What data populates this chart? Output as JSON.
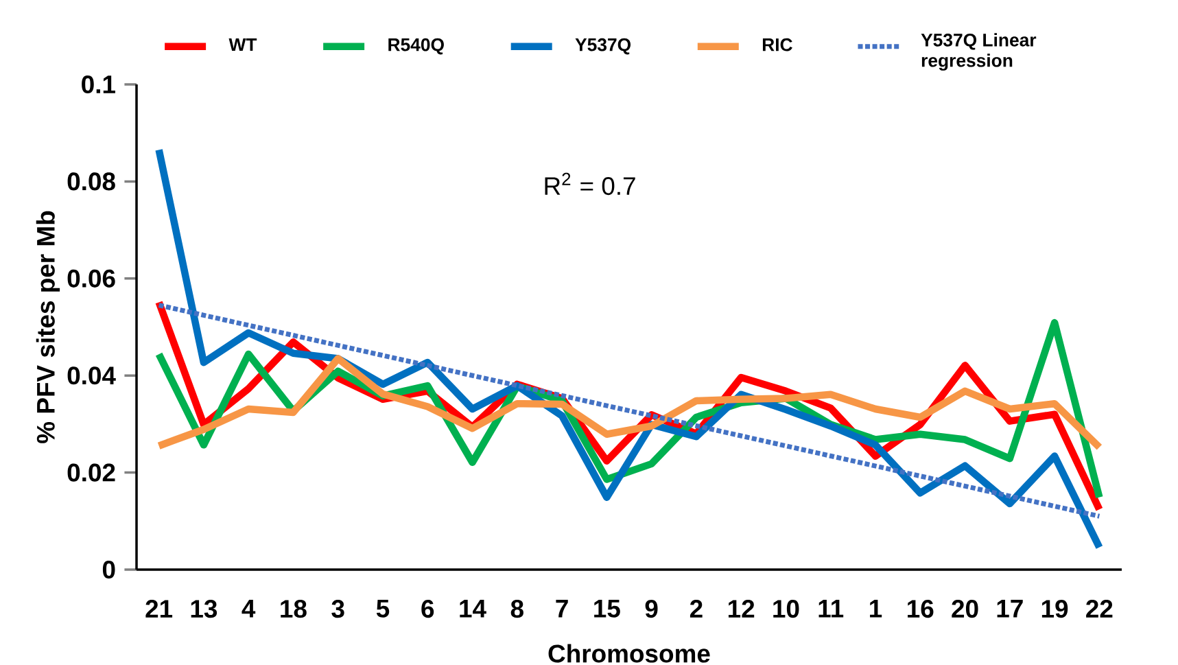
{
  "chart_data": {
    "type": "line",
    "xlabel": "Chromosome",
    "ylabel": "% PFV sites per Mb",
    "categories": [
      "21",
      "13",
      "4",
      "18",
      "3",
      "5",
      "6",
      "14",
      "8",
      "7",
      "15",
      "9",
      "2",
      "12",
      "10",
      "11",
      "1",
      "16",
      "20",
      "17",
      "19",
      "22"
    ],
    "series": [
      {
        "name": "WT",
        "color": "#ff0000",
        "values": [
          0.0551,
          0.0299,
          0.0373,
          0.0469,
          0.0395,
          0.0351,
          0.0368,
          0.0294,
          0.0382,
          0.0353,
          0.0224,
          0.0319,
          0.028,
          0.0396,
          0.0368,
          0.0333,
          0.0234,
          0.0299,
          0.0421,
          0.0306,
          0.032,
          0.0124
        ]
      },
      {
        "name": "R540Q",
        "color": "#00b050",
        "values": [
          0.0444,
          0.0257,
          0.0444,
          0.0327,
          0.0409,
          0.0358,
          0.0379,
          0.0221,
          0.0378,
          0.0348,
          0.0186,
          0.0218,
          0.0314,
          0.0344,
          0.0353,
          0.0299,
          0.0268,
          0.0279,
          0.0268,
          0.0229,
          0.0509,
          0.0149
        ]
      },
      {
        "name": "Y537Q",
        "color": "#0070c0",
        "values": [
          0.0865,
          0.0427,
          0.0488,
          0.0446,
          0.0435,
          0.0382,
          0.0427,
          0.0331,
          0.0379,
          0.0317,
          0.0149,
          0.0299,
          0.0274,
          0.0361,
          0.033,
          0.0296,
          0.0257,
          0.0158,
          0.0214,
          0.0136,
          0.0234,
          0.0046
        ]
      },
      {
        "name": "RIC",
        "color": "#f79646",
        "values": [
          0.0255,
          0.0289,
          0.0331,
          0.0324,
          0.0435,
          0.0362,
          0.0336,
          0.0291,
          0.0342,
          0.0341,
          0.0279,
          0.0296,
          0.0348,
          0.0351,
          0.0353,
          0.0361,
          0.0331,
          0.0314,
          0.0368,
          0.0331,
          0.0342,
          0.0252
        ]
      },
      {
        "name": "Y537Q Linear regression",
        "type": "line",
        "line_style": "dotted",
        "color": "#4472c4",
        "x": [
          "21",
          "22"
        ],
        "values": [
          0.0545,
          0.011
        ]
      }
    ],
    "ylim": [
      0,
      0.1
    ],
    "yticks": [
      0,
      0.02,
      0.04,
      0.06,
      0.08,
      0.1
    ],
    "legend": "top",
    "annotations": [
      "R$^{2}$ = 0.7"
    ]
  }
}
